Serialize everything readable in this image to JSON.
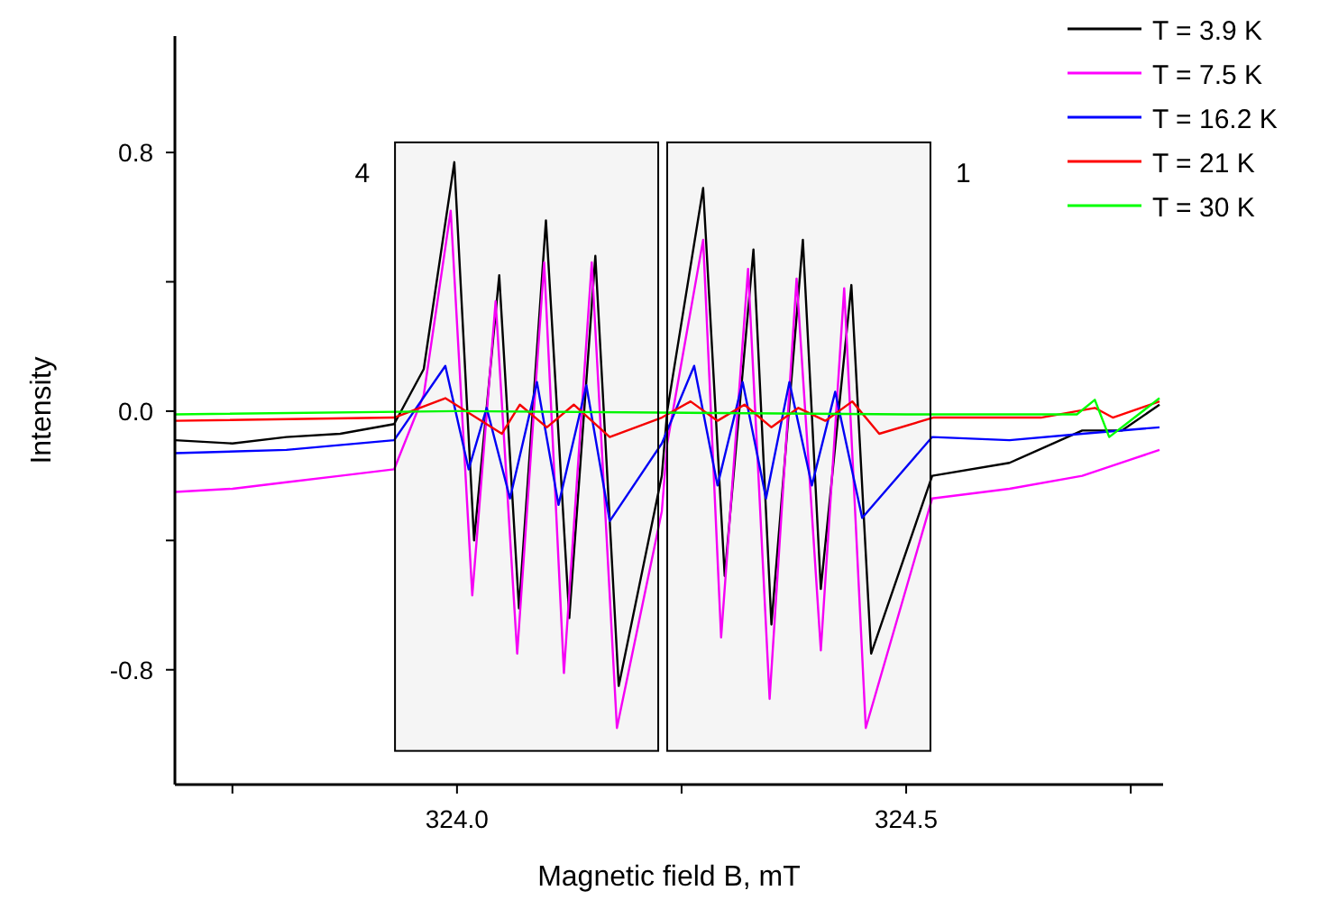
{
  "chart_data": {
    "type": "line",
    "xlabel": "Magnetic field B, mT",
    "ylabel": "Intensity",
    "xlim": [
      323.686,
      324.786
    ],
    "ylim": [
      -1.155,
      1.16
    ],
    "xticks": [
      {
        "value": 323.75,
        "label": null
      },
      {
        "value": 324.0,
        "label": "324.0"
      },
      {
        "value": 324.25,
        "label": null
      },
      {
        "value": 324.5,
        "label": "324.5"
      },
      {
        "value": 324.75,
        "label": null
      }
    ],
    "yticks": [
      {
        "value": -0.8,
        "label": "-0.8"
      },
      {
        "value": -0.4,
        "label": null
      },
      {
        "value": 0,
        "label": "0.0"
      },
      {
        "value": 0.4,
        "label": null
      },
      {
        "value": 0.8,
        "label": "0.8"
      }
    ],
    "grid": false,
    "legend": "top right",
    "marker": "none",
    "line_style": "solid",
    "bands": [
      {
        "axis": "x",
        "from": 323.931,
        "to": 324.224,
        "label": "4"
      },
      {
        "axis": "x",
        "from": 324.234,
        "to": 324.527,
        "label": "1"
      }
    ],
    "series": [
      {
        "name": "T = 3.9 K",
        "color": "#000000",
        "x": [
          323.686,
          323.75,
          323.81,
          323.87,
          323.93,
          323.963,
          323.997,
          324.019,
          324.047,
          324.069,
          324.099,
          324.125,
          324.154,
          324.18,
          324.228,
          324.234,
          324.274,
          324.298,
          324.33,
          324.35,
          324.385,
          324.405,
          324.439,
          324.461,
          324.529,
          324.615,
          324.696,
          324.74,
          324.782
        ],
        "values": [
          -0.09,
          -0.1,
          -0.08,
          -0.07,
          -0.04,
          0.13,
          0.77,
          -0.4,
          0.42,
          -0.61,
          0.59,
          -0.64,
          0.48,
          -0.85,
          -0.2,
          0.0,
          0.69,
          -0.51,
          0.5,
          -0.66,
          0.53,
          -0.55,
          0.39,
          -0.75,
          -0.2,
          -0.16,
          -0.06,
          -0.06,
          0.02
        ]
      },
      {
        "name": "T = 7.5 K",
        "color": "#ff00ff",
        "x": [
          323.686,
          323.75,
          323.81,
          323.87,
          323.93,
          323.963,
          323.993,
          324.017,
          324.043,
          324.067,
          324.097,
          324.119,
          324.15,
          324.178,
          324.228,
          324.234,
          324.274,
          324.294,
          324.324,
          324.348,
          324.378,
          324.405,
          324.431,
          324.455,
          324.529,
          324.615,
          324.696,
          324.782
        ],
        "values": [
          -0.25,
          -0.24,
          -0.22,
          -0.2,
          -0.18,
          0.05,
          0.62,
          -0.57,
          0.34,
          -0.75,
          0.46,
          -0.81,
          0.46,
          -0.98,
          -0.31,
          -0.1,
          0.53,
          -0.7,
          0.44,
          -0.89,
          0.41,
          -0.74,
          0.38,
          -0.98,
          -0.27,
          -0.24,
          -0.2,
          -0.12
        ]
      },
      {
        "name": "T = 16.2 K",
        "color": "#0000ff",
        "x": [
          323.686,
          323.81,
          323.93,
          323.987,
          324.013,
          324.033,
          324.059,
          324.089,
          324.113,
          324.144,
          324.17,
          324.228,
          324.264,
          324.29,
          324.318,
          324.344,
          324.37,
          324.395,
          324.421,
          324.451,
          324.529,
          324.615,
          324.696,
          324.782
        ],
        "values": [
          -0.13,
          -0.12,
          -0.09,
          0.14,
          -0.18,
          0.01,
          -0.27,
          0.09,
          -0.29,
          0.08,
          -0.34,
          -0.1,
          0.14,
          -0.23,
          0.09,
          -0.27,
          0.09,
          -0.23,
          0.06,
          -0.33,
          -0.08,
          -0.09,
          -0.07,
          -0.05
        ]
      },
      {
        "name": "T = 21 K",
        "color": "#ff0000",
        "x": [
          323.686,
          323.93,
          323.987,
          324.05,
          324.07,
          324.1,
          324.13,
          324.17,
          324.228,
          324.26,
          324.29,
          324.32,
          324.35,
          324.38,
          324.41,
          324.44,
          324.47,
          324.53,
          324.65,
          324.71,
          324.73,
          324.782
        ],
        "values": [
          -0.03,
          -0.02,
          0.04,
          -0.07,
          0.02,
          -0.05,
          0.02,
          -0.08,
          -0.02,
          0.03,
          -0.03,
          0.02,
          -0.05,
          0.01,
          -0.03,
          0.03,
          -0.07,
          -0.02,
          -0.02,
          0.01,
          -0.02,
          0.03
        ]
      },
      {
        "name": "T = 30 K",
        "color": "#00ff00",
        "x": [
          323.686,
          324.0,
          324.5,
          324.69,
          324.71,
          324.726,
          324.782
        ],
        "values": [
          -0.01,
          0.0,
          -0.01,
          -0.01,
          0.035,
          -0.08,
          0.04
        ]
      }
    ]
  }
}
